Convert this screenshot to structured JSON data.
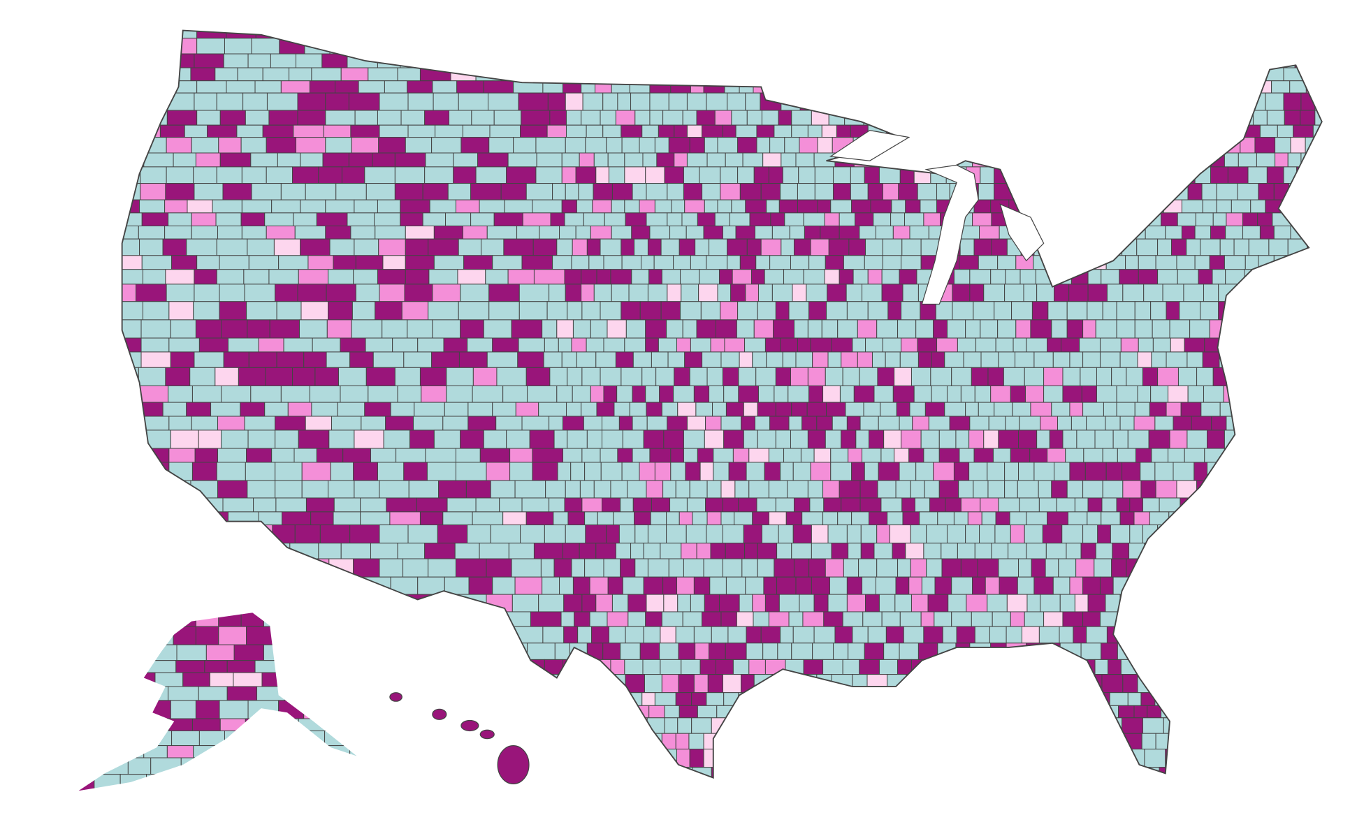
{
  "map": {
    "colors": [
      "#b0dadc",
      "#99157a",
      "#f48fd8",
      "#fdd6ee"
    ],
    "border_color": "#444444"
  }
}
